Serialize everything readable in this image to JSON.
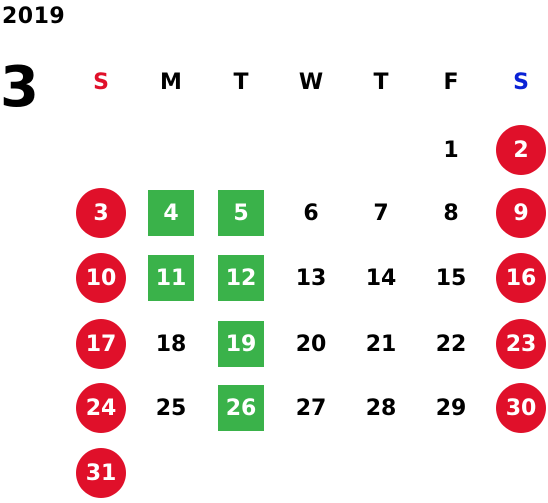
{
  "calendar": {
    "year": "2019",
    "month": "3",
    "weekdays": [
      "S",
      "M",
      "T",
      "W",
      "T",
      "F",
      "S"
    ],
    "colors": {
      "holiday": "#e0102a",
      "highlight": "#3ab24a",
      "sunday_label": "#e0102a",
      "saturday_label": "#0a22d6"
    },
    "weeks": [
      [
        "",
        "",
        "",
        "",
        "",
        "1",
        "2"
      ],
      [
        "3",
        "4",
        "5",
        "6",
        "7",
        "8",
        "9"
      ],
      [
        "10",
        "11",
        "12",
        "13",
        "14",
        "15",
        "16"
      ],
      [
        "17",
        "18",
        "19",
        "20",
        "21",
        "22",
        "23"
      ],
      [
        "24",
        "25",
        "26",
        "27",
        "28",
        "29",
        "30"
      ],
      [
        "31",
        "",
        "",
        "",
        "",
        "",
        ""
      ]
    ],
    "holidays": [
      "2",
      "3",
      "9",
      "10",
      "16",
      "17",
      "23",
      "24",
      "30",
      "31"
    ],
    "highlighted": [
      "4",
      "5",
      "11",
      "12",
      "19",
      "26"
    ]
  }
}
